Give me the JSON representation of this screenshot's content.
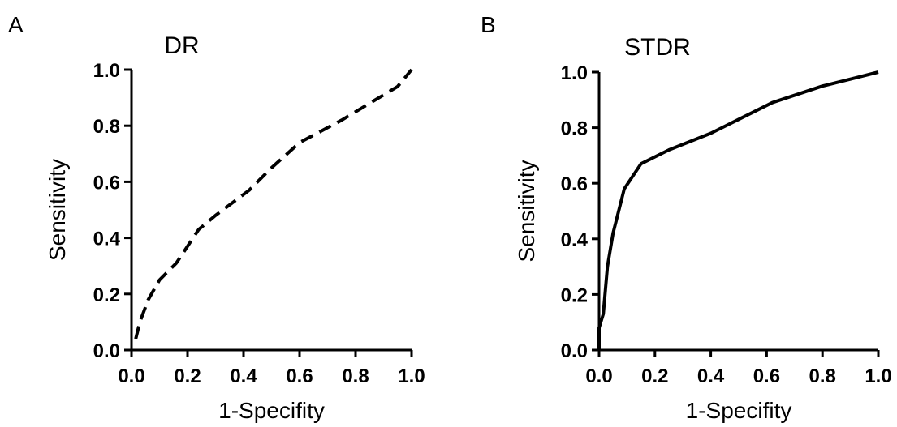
{
  "chart_data": [
    {
      "panel_label": "A",
      "type": "line",
      "title": "DR",
      "xlabel": "1-Specifity",
      "ylabel": "Sensitivity",
      "xlim": [
        0,
        1
      ],
      "ylim": [
        0,
        1
      ],
      "x_ticks": [
        "0.0",
        "0.2",
        "0.4",
        "0.6",
        "0.8",
        "1.0"
      ],
      "y_ticks": [
        "0.0",
        "0.2",
        "0.4",
        "0.6",
        "0.8",
        "1.0"
      ],
      "line_style": "dashed",
      "series": [
        {
          "x": [
            0.015,
            0.03,
            0.06,
            0.1,
            0.16,
            0.24,
            0.3,
            0.42,
            0.5,
            0.6,
            0.75,
            0.85,
            0.95,
            1.0
          ],
          "y": [
            0.04,
            0.1,
            0.18,
            0.25,
            0.31,
            0.43,
            0.48,
            0.57,
            0.65,
            0.74,
            0.82,
            0.88,
            0.94,
            1.0
          ]
        }
      ]
    },
    {
      "panel_label": "B",
      "type": "line",
      "title": "STDR",
      "xlabel": "1-Specifity",
      "ylabel": "Sensitivity",
      "xlim": [
        0,
        1
      ],
      "ylim": [
        0,
        1
      ],
      "x_ticks": [
        "0.0",
        "0.2",
        "0.4",
        "0.6",
        "0.8",
        "1.0"
      ],
      "y_ticks": [
        "0.0",
        "0.2",
        "0.4",
        "0.6",
        "0.8",
        "1.0"
      ],
      "line_style": "solid",
      "series": [
        {
          "x": [
            0.0,
            0.0,
            0.015,
            0.03,
            0.05,
            0.09,
            0.15,
            0.25,
            0.4,
            0.5,
            0.62,
            0.8,
            0.92,
            1.0
          ],
          "y": [
            0.0,
            0.08,
            0.13,
            0.3,
            0.42,
            0.58,
            0.67,
            0.72,
            0.78,
            0.83,
            0.89,
            0.95,
            0.98,
            1.0
          ]
        }
      ]
    }
  ]
}
